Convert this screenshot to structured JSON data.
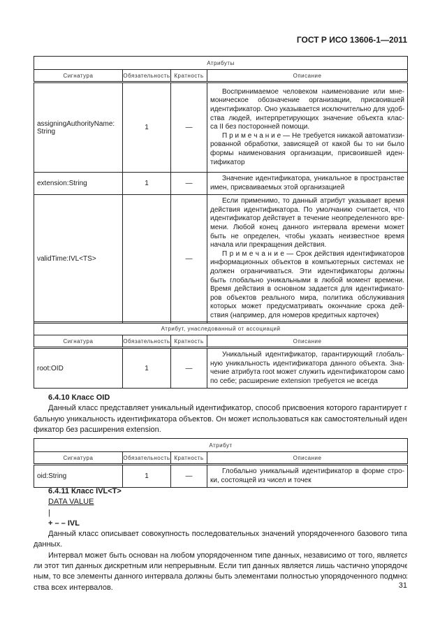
{
  "header": "ГОСТ Р ИСО 13606-1—2011",
  "columns": [
    "Сигнатура",
    "Обязательность",
    "Кратность",
    "Описание"
  ],
  "tables": [
    {
      "title": "Атрибуты",
      "rows": [
        {
          "signature": [
            "assigningAuthorityName:",
            "String"
          ],
          "required": "1",
          "multiplicity": "—",
          "height": 129,
          "desc": [
            [
              "Воспринимаемое человеком наименование или мне-",
              "моническое обозначение организации, присвоившей",
              "идентификатор. Оно указывается исключительно для удоб-",
              "ства людей, интерпретирующих значение объекта клас-",
              "са II без посторонней помощи."
            ],
            [
              "П р и м е ч а н и е — Не требуется никакой автоматизи-",
              "рованной обработки, зависящей от какой бы то ни было",
              "формы наименования организации, присвоившей иден-",
              "тификатор"
            ]
          ]
        },
        {
          "signature": [
            "extension:String"
          ],
          "required": "1",
          "multiplicity": "—",
          "height": 28,
          "desc": [
            [
              "Значение идентификатора, уникальное в пространстве",
              "имен, присваиваемых этой организацией"
            ]
          ]
        },
        {
          "signature": [
            "validTime:IVL<TS>"
          ],
          "required": "",
          "multiplicity": "—",
          "height": 176,
          "desc": [
            [
              "Если применимо, то данный атрибут указывает время",
              "действия идентификатора. По умолчанию считается, что",
              "идентификатор действует в течение неопределенного вре-",
              "мени. Любой конец данного интервала времени может",
              "быть не определен, чтобы указать  неизвестное время",
              "начала или прекращения действия."
            ],
            [
              "П р и м е ч а н и е — Срок действия идентификаторов",
              "информационных объектов в компьютерных системах не",
              "должен ограничиваться. Эти идентификаторы должны",
              "быть глобально уникальными в любой момент времени.",
              "Время действия в основном задается для идентификато-",
              "ров объектов реального мира, политика обслуживания",
              "которых может предусматривать окончание срока дей-",
              "ствия (например, для номеров кредитных карточек)"
            ]
          ]
        }
      ]
    },
    {
      "title": "Атрибут, унаследованный от ассоциаций",
      "rows": [
        {
          "signature": [
            "root:OID"
          ],
          "required": "1",
          "multiplicity": "—",
          "height": 48,
          "desc": [
            [
              "Уникальный идентификатор, гарантирующий глобаль-",
              "ную уникальность идентификатора данного объекта. Зна-",
              "чение атрибута root может служить идентификатором само",
              "по себе; расширение extension требуется не всегда"
            ]
          ]
        }
      ]
    },
    {
      "title": "Атрибут",
      "rows": [
        {
          "signature": [
            "oid:String"
          ],
          "required": "1",
          "multiplicity": "—",
          "height": 32,
          "desc": [
            [
              "Глобально уникальный идентификатор в форме стро-",
              "ки, состоящей из чисел и точек"
            ]
          ]
        }
      ]
    }
  ],
  "section_6_4_10": {
    "heading": "6.4.10 Класс OID",
    "paragraph": [
      "Данный класс представляет уникальный идентификатор, способ присвоения которого гарантирует гло-",
      "бальную уникальность идентификатора объектов. Он может использоваться как самостоятельный иденти-",
      "фикатор без расширения extension."
    ]
  },
  "section_6_4_11": {
    "heading": "6.4.11 Класс IVL<T>",
    "diagram": [
      "DATA VALUE",
      "|",
      "+ – – IVL"
    ],
    "paragraphs": [
      [
        "Данный класс описывает совокупность последовательных значений упорядоченного базового типа",
        "данных."
      ],
      [
        "Интервал может быть основан на любом упорядоченном типе данных, независимо от того, является",
        "ли этот тип данных дискретным или непрерывным. Если тип данных является лишь частично упорядочен-",
        "ным, то все элементы данного интервала должны быть элементами полностью упорядоченного подмноже-",
        "ства всех интервалов."
      ]
    ]
  },
  "page_number": "31"
}
